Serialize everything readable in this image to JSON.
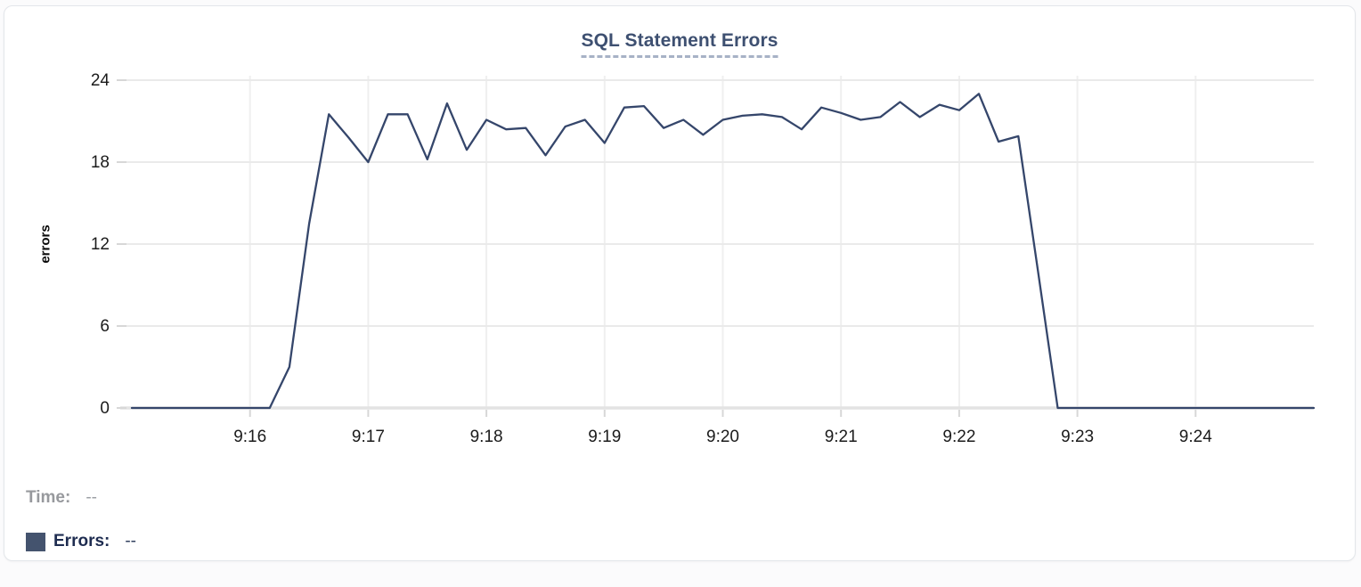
{
  "card": {
    "title": "SQL Statement Errors"
  },
  "tooltip_readout": {
    "time_label": "Time:",
    "time_value": "--",
    "errors_label": "Errors:",
    "errors_value": "--",
    "swatch_color": "#44536e"
  },
  "colors": {
    "line": "#35466b",
    "title": "#3e5071",
    "title_underline": "#a7b2c6",
    "grid_horizontal": "#eaeaea",
    "grid_vertical": "#efefef",
    "zero_line": "#e3e3e3",
    "tick_mark": "#d7d7d7",
    "axis_text": "#1b1b1b",
    "time_readout": "#9da0a5",
    "errors_readout": "#1e2c50",
    "card_border": "#e3e6ea"
  },
  "chart_data": {
    "type": "line",
    "title": "SQL Statement Errors",
    "xlabel": "",
    "ylabel": "errors",
    "ylim": [
      0,
      24
    ],
    "y_ticks": [
      0,
      6,
      12,
      18,
      24
    ],
    "x_tick_labels": [
      "9:16",
      "9:17",
      "9:18",
      "9:19",
      "9:20",
      "9:21",
      "9:22",
      "9:23",
      "9:24"
    ],
    "x_range": [
      "9:15:00",
      "9:25:00"
    ],
    "sample_interval_seconds": 10,
    "grid": true,
    "legend_position": "bottom-left",
    "series": [
      {
        "name": "Errors",
        "color": "#35466b",
        "x_times": [
          "9:15:00",
          "9:15:10",
          "9:15:20",
          "9:15:30",
          "9:15:40",
          "9:15:50",
          "9:16:00",
          "9:16:10",
          "9:16:20",
          "9:16:30",
          "9:16:40",
          "9:16:50",
          "9:17:00",
          "9:17:10",
          "9:17:20",
          "9:17:30",
          "9:17:40",
          "9:17:50",
          "9:18:00",
          "9:18:10",
          "9:18:20",
          "9:18:30",
          "9:18:40",
          "9:18:50",
          "9:19:00",
          "9:19:10",
          "9:19:20",
          "9:19:30",
          "9:19:40",
          "9:19:50",
          "9:20:00",
          "9:20:10",
          "9:20:20",
          "9:20:30",
          "9:20:40",
          "9:20:50",
          "9:21:00",
          "9:21:10",
          "9:21:20",
          "9:21:30",
          "9:21:40",
          "9:21:50",
          "9:22:00",
          "9:22:10",
          "9:22:20",
          "9:22:30",
          "9:22:40",
          "9:22:50",
          "9:23:00",
          "9:23:10",
          "9:23:20",
          "9:23:30",
          "9:23:40",
          "9:23:50",
          "9:24:00",
          "9:24:10",
          "9:24:20",
          "9:24:30",
          "9:24:40",
          "9:24:50",
          "9:25:00"
        ],
        "values": [
          0,
          0,
          0,
          0,
          0,
          0,
          0,
          0,
          3,
          13.5,
          21.5,
          19.8,
          18,
          21.5,
          21.5,
          18.2,
          22.3,
          18.9,
          21.1,
          20.4,
          20.5,
          18.5,
          20.6,
          21.1,
          19.4,
          22,
          22.1,
          20.5,
          21.1,
          20,
          21.1,
          21.4,
          21.5,
          21.3,
          20.4,
          22,
          21.6,
          21.1,
          21.3,
          22.4,
          21.3,
          22.2,
          21.8,
          23,
          19.5,
          19.9,
          10,
          0,
          0,
          0,
          0,
          0,
          0,
          0,
          0,
          0,
          0,
          0,
          0,
          0,
          0
        ]
      }
    ]
  }
}
